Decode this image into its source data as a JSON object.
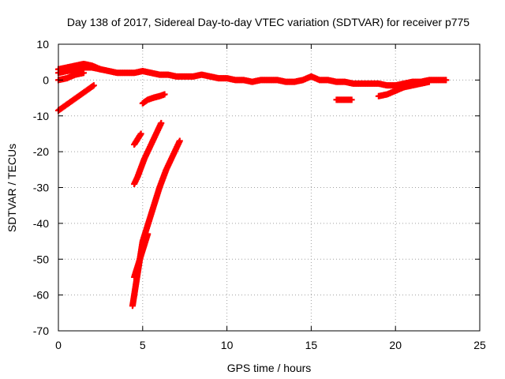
{
  "chart_data": {
    "type": "scatter",
    "title": "Day 138 of 2017, Sidereal Day-to-day VTEC variation (SDTVAR) for receiver p775",
    "xlabel": "GPS time / hours",
    "ylabel": "SDTVAR / TECUs",
    "xlim": [
      0,
      25
    ],
    "ylim": [
      -70,
      10
    ],
    "xticks": [
      0,
      5,
      10,
      15,
      20,
      25
    ],
    "yticks": [
      10,
      0,
      -10,
      -20,
      -30,
      -40,
      -50,
      -60,
      -70
    ],
    "grid": true,
    "marker": "plus",
    "color": "#ff0000",
    "series": [
      {
        "name": "main-top",
        "points": [
          [
            0,
            3
          ],
          [
            0.5,
            3.5
          ],
          [
            1,
            4
          ],
          [
            1.5,
            4.5
          ],
          [
            2,
            4
          ],
          [
            2.5,
            3
          ],
          [
            3,
            2.5
          ],
          [
            3.5,
            2
          ],
          [
            4,
            2
          ],
          [
            4.5,
            2
          ],
          [
            5,
            2.5
          ],
          [
            5.5,
            2
          ],
          [
            6,
            1.5
          ],
          [
            6.5,
            1.5
          ],
          [
            7,
            1
          ],
          [
            7.5,
            1
          ],
          [
            8,
            1
          ],
          [
            8.5,
            1.5
          ],
          [
            9,
            1
          ],
          [
            9.5,
            0.5
          ],
          [
            10,
            0.5
          ],
          [
            10.5,
            0
          ],
          [
            11,
            0
          ],
          [
            11.5,
            -0.5
          ],
          [
            12,
            0
          ],
          [
            12.5,
            0
          ],
          [
            13,
            0
          ],
          [
            13.5,
            -0.5
          ],
          [
            14,
            -0.5
          ],
          [
            14.5,
            0
          ],
          [
            15,
            1
          ],
          [
            15.5,
            0
          ],
          [
            16,
            0
          ],
          [
            16.5,
            -0.5
          ],
          [
            17,
            -0.5
          ],
          [
            17.5,
            -1
          ],
          [
            18,
            -1
          ],
          [
            18.5,
            -1
          ],
          [
            19,
            -1
          ],
          [
            19.5,
            -1.5
          ],
          [
            20,
            -1.5
          ],
          [
            20.5,
            -1
          ],
          [
            21,
            -0.5
          ],
          [
            21.5,
            -0.5
          ],
          [
            22,
            0
          ],
          [
            22.5,
            0
          ],
          [
            23,
            0
          ]
        ]
      },
      {
        "name": "upper-arc-a",
        "points": [
          [
            0,
            2
          ],
          [
            0.5,
            2.5
          ],
          [
            1,
            3
          ],
          [
            1.5,
            3.5
          ],
          [
            2,
            3.5
          ],
          [
            2.5,
            3
          ]
        ]
      },
      {
        "name": "upper-arc-b",
        "points": [
          [
            0,
            0
          ],
          [
            0.5,
            0.5
          ],
          [
            1,
            1.5
          ],
          [
            1.5,
            2
          ]
        ]
      },
      {
        "name": "left-rising",
        "points": [
          [
            0,
            -8.5
          ],
          [
            0.3,
            -7.5
          ],
          [
            0.6,
            -6.5
          ],
          [
            0.9,
            -5.5
          ],
          [
            1.2,
            -4.5
          ],
          [
            1.5,
            -3.5
          ],
          [
            1.8,
            -2.5
          ],
          [
            2.1,
            -1.5
          ]
        ]
      },
      {
        "name": "mid-small",
        "points": [
          [
            5,
            -6.5
          ],
          [
            5.3,
            -5.5
          ],
          [
            5.6,
            -5
          ],
          [
            6,
            -4.5
          ],
          [
            6.3,
            -4
          ]
        ]
      },
      {
        "name": "short-steep",
        "points": [
          [
            4.5,
            -18
          ],
          [
            4.7,
            -16.5
          ],
          [
            4.9,
            -15
          ]
        ]
      },
      {
        "name": "steep-1",
        "points": [
          [
            4.5,
            -29
          ],
          [
            4.7,
            -27
          ],
          [
            4.9,
            -24.5
          ],
          [
            5.1,
            -22
          ],
          [
            5.3,
            -20
          ],
          [
            5.5,
            -18
          ],
          [
            5.7,
            -16
          ],
          [
            5.9,
            -14
          ],
          [
            6.1,
            -12
          ]
        ]
      },
      {
        "name": "steep-2",
        "points": [
          [
            4.4,
            -63
          ],
          [
            4.5,
            -60
          ],
          [
            4.6,
            -57
          ],
          [
            4.7,
            -54
          ],
          [
            4.8,
            -51
          ],
          [
            4.9,
            -48
          ],
          [
            5.0,
            -45
          ],
          [
            5.2,
            -42
          ],
          [
            5.4,
            -39
          ],
          [
            5.6,
            -36
          ],
          [
            5.8,
            -33
          ],
          [
            6.0,
            -30
          ],
          [
            6.2,
            -27.5
          ],
          [
            6.4,
            -25
          ],
          [
            6.6,
            -23
          ],
          [
            6.8,
            -21
          ],
          [
            7.0,
            -19
          ],
          [
            7.2,
            -17
          ]
        ]
      },
      {
        "name": "steep-3",
        "points": [
          [
            4.5,
            -55
          ],
          [
            4.7,
            -52
          ],
          [
            4.9,
            -49
          ],
          [
            5.1,
            -46
          ],
          [
            5.3,
            -43
          ]
        ]
      },
      {
        "name": "flat-segment",
        "points": [
          [
            16.5,
            -5.5
          ],
          [
            16.8,
            -5.5
          ],
          [
            17.1,
            -5.5
          ],
          [
            17.4,
            -5.5
          ]
        ]
      },
      {
        "name": "late-rising",
        "points": [
          [
            19,
            -4.5
          ],
          [
            19.5,
            -4
          ],
          [
            20,
            -3
          ],
          [
            20.5,
            -2
          ],
          [
            21,
            -1.5
          ],
          [
            21.5,
            -1
          ],
          [
            22,
            -0.5
          ]
        ]
      }
    ]
  }
}
